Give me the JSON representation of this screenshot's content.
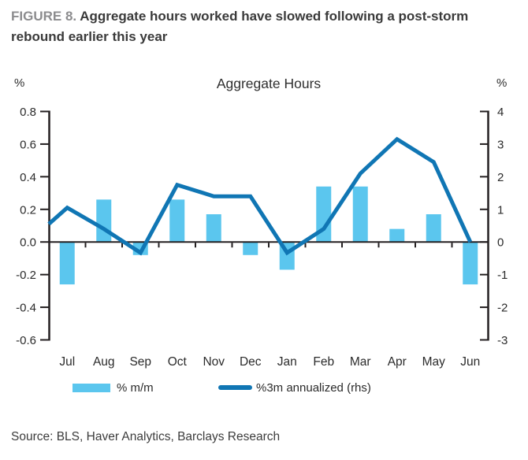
{
  "header": {
    "figure_label": "FIGURE 8.",
    "figure_title": " Aggregate hours worked have slowed following a post-storm rebound earlier this year"
  },
  "chart": {
    "title": "Aggregate Hours",
    "left_axis_unit": "%",
    "right_axis_unit": "%"
  },
  "chart_data": {
    "type": "bar+line combo",
    "title": "Aggregate Hours",
    "categories": [
      "Jul",
      "Aug",
      "Sep",
      "Oct",
      "Nov",
      "Dec",
      "Jan",
      "Feb",
      "Mar",
      "Apr",
      "May",
      "Jun"
    ],
    "series": [
      {
        "name": "% m/m",
        "type": "bar",
        "axis": "left",
        "values": [
          -0.26,
          0.26,
          -0.08,
          0.26,
          0.17,
          -0.08,
          -0.17,
          0.34,
          0.34,
          0.08,
          0.17,
          -0.26
        ]
      },
      {
        "name": "%3m annualized (rhs)",
        "type": "line",
        "axis": "right",
        "values": [
          1.05,
          0.4,
          -0.33,
          1.75,
          1.4,
          1.4,
          -0.33,
          0.4,
          2.1,
          3.15,
          2.45,
          0.0
        ],
        "line_start_at_axis_rhs": 0.55
      }
    ],
    "left_axis": {
      "unit": "%",
      "min": -0.6,
      "max": 0.8,
      "tick_step": 0.2,
      "tick_labels": [
        "0.8",
        "0.6",
        "0.4",
        "0.2",
        "0.0",
        "-0.2",
        "-0.4",
        "-0.6"
      ]
    },
    "right_axis": {
      "unit": "%",
      "min": -3,
      "max": 4,
      "tick_step": 1,
      "tick_labels": [
        "4",
        "3",
        "2",
        "1",
        "0",
        "-1",
        "-2",
        "-3"
      ]
    },
    "grid": "off",
    "legend_position": "bottom",
    "colors": {
      "bar": "#5BC6EE",
      "line": "#1076B4",
      "axis": "#231F20",
      "text": "#2B2B2B"
    }
  },
  "legend": {
    "items": [
      {
        "label": "% m/m",
        "swatch": "bar"
      },
      {
        "label": "%3m annualized (rhs)",
        "swatch": "line"
      }
    ]
  },
  "source": "Source: BLS, Haver Analytics, Barclays Research"
}
